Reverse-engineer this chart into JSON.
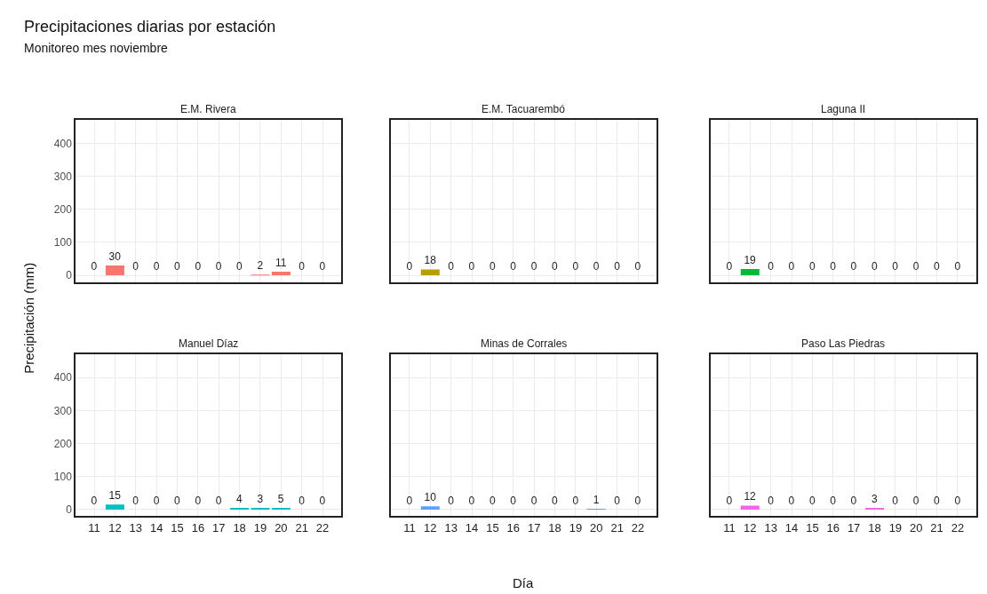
{
  "chart_data": [
    {
      "type": "bar",
      "title": "E.M. Rivera",
      "annotations": [
        "Precipitaciones diarias por estación",
        "Monitoreo mes noviembre"
      ],
      "categories": [
        "11",
        "12",
        "13",
        "14",
        "15",
        "16",
        "17",
        "18",
        "19",
        "20",
        "21",
        "22"
      ],
      "values": [
        0,
        30,
        0,
        0,
        0,
        0,
        0,
        0,
        2,
        11,
        0,
        0
      ],
      "color": "#f8766d",
      "ylim": [
        -20,
        470
      ],
      "yticks": [
        0,
        100,
        200,
        300,
        400
      ],
      "grid": true,
      "data_labels": true,
      "tick_labels": "y"
    },
    {
      "type": "bar",
      "title": "E.M. Tacuarembó",
      "categories": [
        "11",
        "12",
        "13",
        "14",
        "15",
        "16",
        "17",
        "18",
        "19",
        "20",
        "21",
        "22"
      ],
      "values": [
        0,
        18,
        0,
        0,
        0,
        0,
        0,
        0,
        0,
        0,
        0,
        0
      ],
      "color": "#b79f00",
      "ylim": [
        -20,
        470
      ],
      "yticks": [
        0,
        100,
        200,
        300,
        400
      ],
      "grid": true,
      "data_labels": true,
      "tick_labels": false
    },
    {
      "type": "bar",
      "title": "Laguna II",
      "categories": [
        "11",
        "12",
        "13",
        "14",
        "15",
        "16",
        "17",
        "18",
        "19",
        "20",
        "21",
        "22"
      ],
      "values": [
        0,
        19,
        0,
        0,
        0,
        0,
        0,
        0,
        0,
        0,
        0,
        0
      ],
      "color": "#00ba38",
      "ylim": [
        -20,
        470
      ],
      "yticks": [
        0,
        100,
        200,
        300,
        400
      ],
      "grid": true,
      "data_labels": true,
      "tick_labels": false
    },
    {
      "type": "bar",
      "title": "Manuel Díaz",
      "ylabel": "Precipitación (mm)",
      "categories": [
        "11",
        "12",
        "13",
        "14",
        "15",
        "16",
        "17",
        "18",
        "19",
        "20",
        "21",
        "22"
      ],
      "values": [
        0,
        15,
        0,
        0,
        0,
        0,
        0,
        4,
        3,
        5,
        0,
        0
      ],
      "color": "#00bfc4",
      "ylim": [
        -20,
        470
      ],
      "yticks": [
        0,
        100,
        200,
        300,
        400
      ],
      "grid": true,
      "data_labels": true
    },
    {
      "type": "bar",
      "title": "Minas de Corrales",
      "xlabel": "Día",
      "categories": [
        "11",
        "12",
        "13",
        "14",
        "15",
        "16",
        "17",
        "18",
        "19",
        "20",
        "21",
        "22"
      ],
      "values": [
        0,
        10,
        0,
        0,
        0,
        0,
        0,
        0,
        0,
        1,
        0,
        0
      ],
      "color": "#619cff",
      "ylim": [
        -20,
        470
      ],
      "yticks": [
        0,
        100,
        200,
        300,
        400
      ],
      "grid": true,
      "data_labels": true,
      "tick_labels": "x"
    },
    {
      "type": "bar",
      "title": "Paso Las Piedras",
      "categories": [
        "11",
        "12",
        "13",
        "14",
        "15",
        "16",
        "17",
        "18",
        "19",
        "20",
        "21",
        "22"
      ],
      "values": [
        0,
        12,
        0,
        0,
        0,
        0,
        0,
        3,
        0,
        0,
        0,
        0
      ],
      "color": "#f564e3",
      "ylim": [
        -20,
        470
      ],
      "yticks": [
        0,
        100,
        200,
        300,
        400
      ],
      "grid": true,
      "data_labels": true,
      "tick_labels": "x"
    }
  ]
}
